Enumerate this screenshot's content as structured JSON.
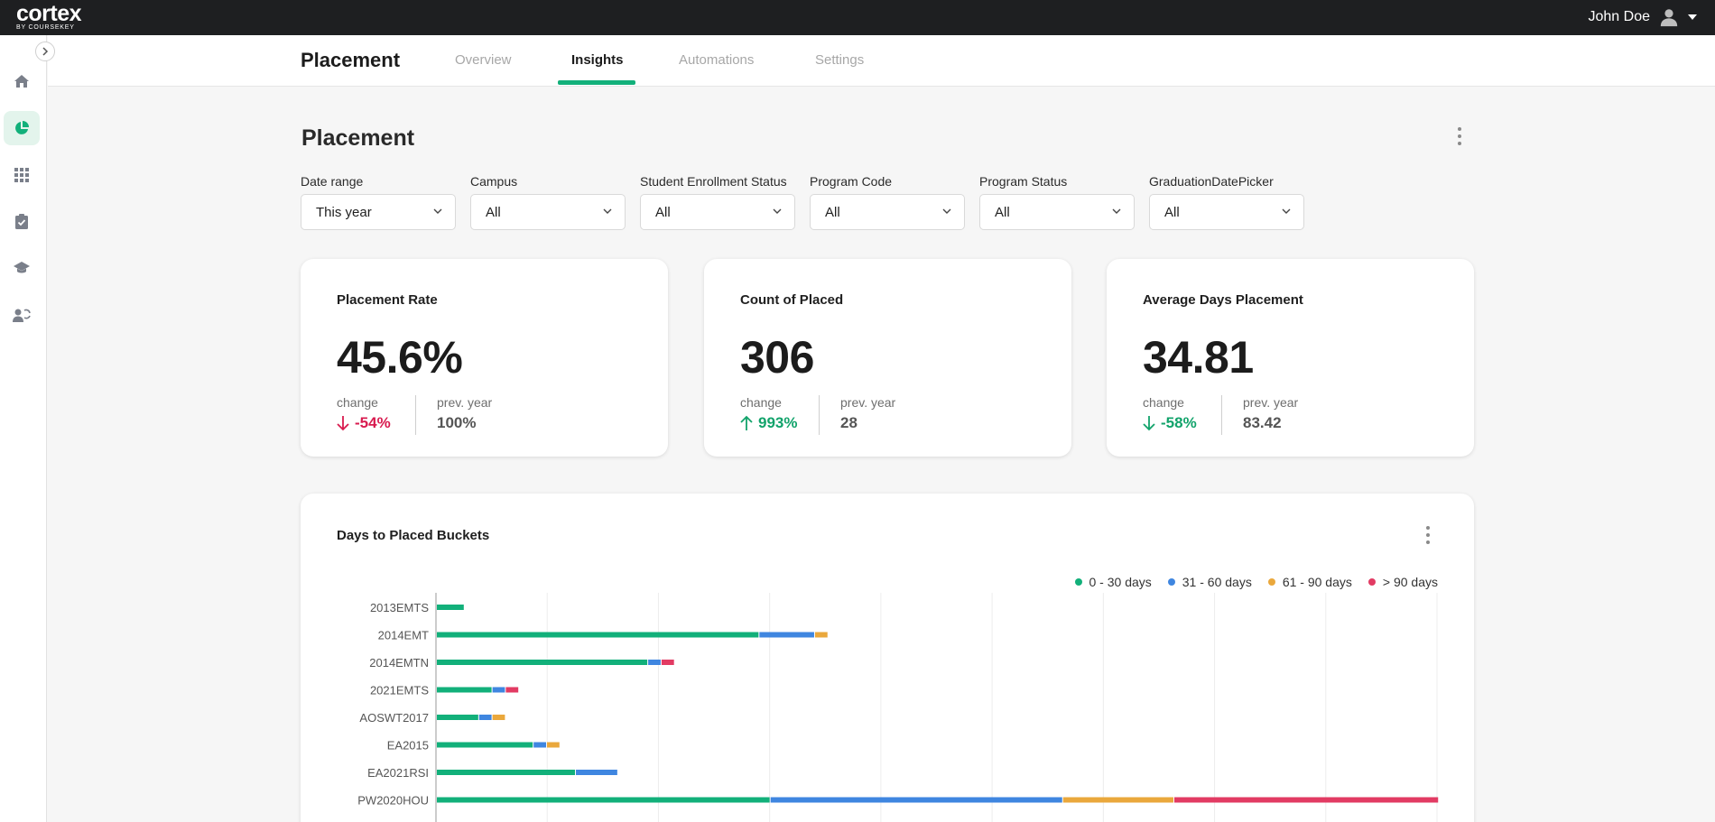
{
  "app": {
    "logo": "cortex",
    "logo_sub": "BY COURSEKEY"
  },
  "user": {
    "name": "John Doe"
  },
  "header": {
    "title": "Placement",
    "tabs": [
      {
        "label": "Overview",
        "active": false
      },
      {
        "label": "Insights",
        "active": true
      },
      {
        "label": "Automations",
        "active": false
      },
      {
        "label": "Settings",
        "active": false
      }
    ]
  },
  "sidebar": {
    "items": [
      {
        "icon": "home-icon",
        "active": false
      },
      {
        "icon": "pie-chart-icon",
        "active": true
      },
      {
        "icon": "apps-grid-icon",
        "active": false
      },
      {
        "icon": "clipboard-check-icon",
        "active": false
      },
      {
        "icon": "graduation-cap-icon",
        "active": false
      },
      {
        "icon": "user-cycle-icon",
        "active": false
      }
    ]
  },
  "page": {
    "title": "Placement"
  },
  "filters": [
    {
      "label": "Date range",
      "value": "This year"
    },
    {
      "label": "Campus",
      "value": "All"
    },
    {
      "label": "Student Enrollment Status",
      "value": "All"
    },
    {
      "label": "Program Code",
      "value": "All"
    },
    {
      "label": "Program Status",
      "value": "All"
    },
    {
      "label": "GraduationDatePicker",
      "value": "All"
    }
  ],
  "kpis": [
    {
      "title": "Placement Rate",
      "value": "45.6%",
      "change_label": "change",
      "change": "-54%",
      "direction": "down",
      "change_color": "#d81b4f",
      "prev_label": "prev. year",
      "prev": "100%"
    },
    {
      "title": "Count of Placed",
      "value": "306",
      "change_label": "change",
      "change": "993%",
      "direction": "up",
      "change_color": "#12a36b",
      "prev_label": "prev. year",
      "prev": "28"
    },
    {
      "title": "Average Days Placement",
      "value": "34.81",
      "change_label": "change",
      "change": "-58%",
      "direction": "down",
      "change_color": "#12a36b",
      "prev_label": "prev. year",
      "prev": "83.42"
    }
  ],
  "colors": {
    "accent": "#12b07a",
    "bucket_0_30": "#12b07a",
    "bucket_31_60": "#3f86e0",
    "bucket_61_90": "#eaa83c",
    "bucket_90_plus": "#e23b63"
  },
  "chart_data": {
    "type": "bar",
    "orientation": "horizontal",
    "stacked": true,
    "title": "Days to Placed Buckets",
    "legend_position": "top-right",
    "grid": true,
    "categories": [
      "2013EMTS",
      "2014EMT",
      "2014EMTN",
      "2021EMTS",
      "AOSWT2017",
      "EA2015",
      "EA2021RSI",
      "PW2020HOU"
    ],
    "xlim": [
      0,
      9
    ],
    "series": [
      {
        "name": "0 - 30 days",
        "color": "#12b07a",
        "values": [
          0.25,
          2.9,
          1.9,
          0.5,
          0.38,
          0.87,
          1.25,
          3.0
        ]
      },
      {
        "name": "31 - 60 days",
        "color": "#3f86e0",
        "values": [
          0,
          0.5,
          0.12,
          0.12,
          0.12,
          0.12,
          0.38,
          2.63
        ]
      },
      {
        "name": "61 - 90 days",
        "color": "#eaa83c",
        "values": [
          0,
          0.12,
          0,
          0,
          0.12,
          0.12,
          0,
          1.0
        ]
      },
      {
        "name": "> 90 days",
        "color": "#e23b63",
        "values": [
          0,
          0,
          0.12,
          0.12,
          0,
          0,
          0,
          2.38
        ]
      }
    ]
  }
}
